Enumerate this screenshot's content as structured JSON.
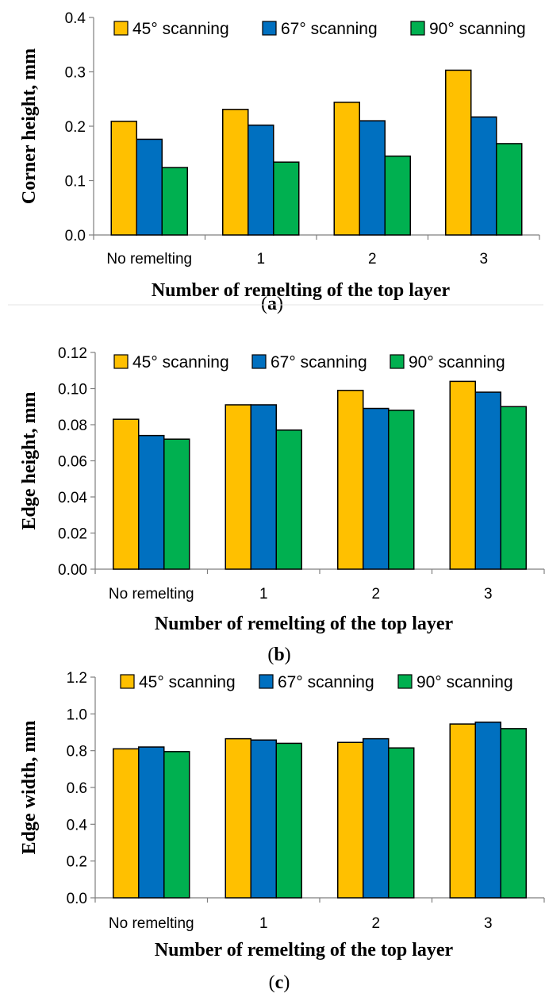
{
  "colors": {
    "series": [
      "#FFC000",
      "#0070C0",
      "#00B050"
    ],
    "bar_stroke": "#000000",
    "axis": "#7f7f7f"
  },
  "chart_data": [
    {
      "type": "bar",
      "panel": "a",
      "categories": [
        "No remelting",
        "1",
        "2",
        "3"
      ],
      "series": [
        {
          "name": "45° scanning",
          "values": [
            0.209,
            0.231,
            0.244,
            0.303
          ]
        },
        {
          "name": "67° scanning",
          "values": [
            0.176,
            0.202,
            0.21,
            0.217
          ]
        },
        {
          "name": "90° scanning",
          "values": [
            0.124,
            0.134,
            0.145,
            0.168
          ]
        }
      ],
      "ylim": [
        0,
        0.4
      ],
      "yticks": [
        "0.0",
        "0.1",
        "0.2",
        "0.3",
        "0.4"
      ],
      "xlabel": "Number of remelting of the top layer",
      "ylabel": "Corner height, mm",
      "legend": "top",
      "grid": false
    },
    {
      "type": "bar",
      "panel": "b",
      "categories": [
        "No remelting",
        "1",
        "2",
        "3"
      ],
      "series": [
        {
          "name": "45° scanning",
          "values": [
            0.083,
            0.091,
            0.099,
            0.104
          ]
        },
        {
          "name": "67° scanning",
          "values": [
            0.074,
            0.091,
            0.089,
            0.098
          ]
        },
        {
          "name": "90° scanning",
          "values": [
            0.072,
            0.077,
            0.088,
            0.09
          ]
        }
      ],
      "ylim": [
        0,
        0.12
      ],
      "yticks": [
        "0.00",
        "0.02",
        "0.04",
        "0.06",
        "0.08",
        "0.10",
        "0.12"
      ],
      "xlabel": "Number of remelting of the top layer",
      "ylabel": "Edge height, mm",
      "legend": "top",
      "grid": false
    },
    {
      "type": "bar",
      "panel": "c",
      "categories": [
        "No remelting",
        "1",
        "2",
        "3"
      ],
      "series": [
        {
          "name": "45° scanning",
          "values": [
            0.81,
            0.865,
            0.845,
            0.945
          ]
        },
        {
          "name": "67° scanning",
          "values": [
            0.82,
            0.858,
            0.865,
            0.955
          ]
        },
        {
          "name": "90° scanning",
          "values": [
            0.795,
            0.84,
            0.815,
            0.92
          ]
        }
      ],
      "ylim": [
        0,
        1.2
      ],
      "yticks": [
        "0.0",
        "0.2",
        "0.4",
        "0.6",
        "0.8",
        "1.0",
        "1.2"
      ],
      "xlabel": "Number of remelting of the top layer",
      "ylabel": "Edge width, mm",
      "legend": "top",
      "grid": false
    }
  ],
  "captions": [
    {
      "open": "(",
      "letter": "a",
      "close": ")"
    },
    {
      "open": "(",
      "letter": "b",
      "close": ")"
    },
    {
      "open": "(",
      "letter": "c",
      "close": ")"
    }
  ]
}
